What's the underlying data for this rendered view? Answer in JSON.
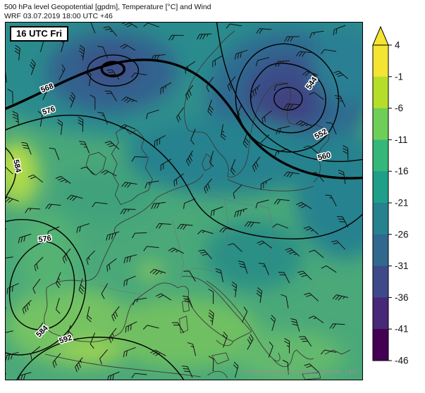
{
  "header": {
    "title_line1": "500 hPa level Geopotential [gpdm], Temperature [°C] and Wind",
    "title_line2": "WRF 03.07.2019 18:00 UTC +46"
  },
  "map": {
    "timestamp_label": "16 UTC Fri",
    "watermark": "© Meteorological Institute Munich, LMU",
    "contour_labels": [
      "568",
      "576",
      "584",
      "576",
      "584",
      "592",
      "544",
      "552",
      "560"
    ]
  },
  "colorbar": {
    "ticks": [
      "4",
      "-1",
      "-6",
      "-11",
      "-16",
      "-21",
      "-26",
      "-31",
      "-36",
      "-41",
      "-46"
    ],
    "colors": [
      "#f4e433",
      "#b5de2b",
      "#6ece58",
      "#35b779",
      "#1f9e89",
      "#26828e",
      "#31688e",
      "#3e4989",
      "#482878",
      "#440154"
    ],
    "arrow_color": "#f4e433"
  },
  "chart_data": {
    "type": "heatmap",
    "title": "500 hPa level Geopotential [gpdm], Temperature [°C] and Wind",
    "model_run": "WRF 03.07.2019 18:00 UTC +46",
    "valid_time": "16 UTC Fri",
    "temperature_scale_c": [
      4,
      -1,
      -6,
      -11,
      -16,
      -21,
      -26,
      -31,
      -36,
      -41,
      -46
    ],
    "geopotential_contours_gpdm": [
      544,
      552,
      560,
      568,
      576,
      584,
      592
    ],
    "colormap": [
      "#f4e433",
      "#b5de2b",
      "#6ece58",
      "#35b779",
      "#1f9e89",
      "#26828e",
      "#31688e",
      "#3e4989",
      "#482878",
      "#440154"
    ],
    "legend_position": "right"
  }
}
